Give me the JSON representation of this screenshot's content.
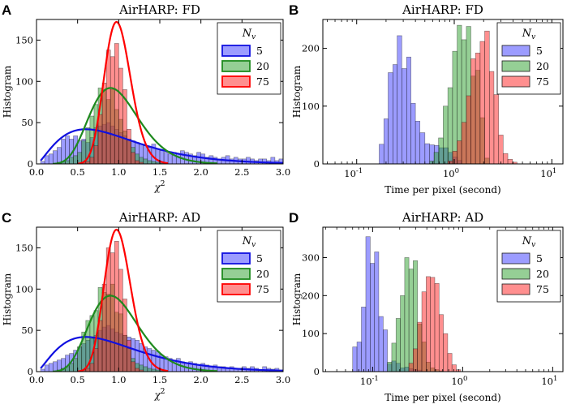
{
  "colors": {
    "blue": "#3a3aff",
    "green": "#2ca02c",
    "red": "#ff2020",
    "blue_line": "#1010e0",
    "green_line": "#1e8a1e",
    "red_line": "#ff0000"
  },
  "chart_data": [
    {
      "id": "A",
      "letter": "A",
      "type": "histogram",
      "title": "AirHARP: FD",
      "xlabel": "χ²",
      "xlabel_base": "χ",
      "xlabel_sup": "2",
      "ylabel": "Histogram",
      "xscale": "linear",
      "xlim": [
        0,
        3
      ],
      "ylim": [
        0,
        175
      ],
      "xticks": [
        0,
        0.5,
        1,
        1.5,
        2,
        2.5,
        3
      ],
      "xtick_labels": [
        "0.0",
        "0.5",
        "1.0",
        "1.5",
        "2.0",
        "2.5",
        "3.0"
      ],
      "yticks": [
        0,
        50,
        100,
        150
      ],
      "ytick_labels": [
        "0",
        "50",
        "100",
        "150"
      ],
      "legend": {
        "title": "N",
        "title_sub": "v",
        "entries": [
          "5",
          "20",
          "75"
        ],
        "placement": "top-right"
      },
      "bin_width": 0.05,
      "series": [
        {
          "name": "5",
          "color_key": "blue",
          "x0": 0.05,
          "values": [
            3,
            10,
            12,
            16,
            20,
            30,
            34,
            30,
            34,
            28,
            30,
            26,
            32,
            44,
            46,
            48,
            50,
            46,
            42,
            38,
            34,
            30,
            28,
            26,
            24,
            22,
            20,
            24,
            18,
            16,
            14,
            12,
            14,
            12,
            16,
            14,
            12,
            10,
            14,
            12,
            8,
            10,
            8,
            6,
            8,
            10,
            6,
            8,
            6,
            6,
            8,
            6,
            4,
            6,
            6,
            4,
            8,
            4,
            6
          ]
        },
        {
          "name": "20",
          "color_key": "green",
          "x0": 0.25,
          "values": [
            2,
            3,
            4,
            8,
            10,
            14,
            28,
            44,
            58,
            72,
            92,
            90,
            78,
            90,
            66,
            54,
            40,
            30,
            20,
            12,
            8,
            6,
            4,
            3,
            2,
            1
          ]
        },
        {
          "name": "75",
          "color_key": "red",
          "x0": 0.55,
          "values": [
            2,
            3,
            8,
            22,
            60,
            98,
            138,
            130,
            146,
            116,
            90,
            42,
            14,
            4,
            2
          ]
        }
      ],
      "fits": [
        {
          "name": "5",
          "color_key": "blue_line",
          "kind": "chi2",
          "dof": 5,
          "scale": 42,
          "xmin": 0.05,
          "xmax": 3.0
        },
        {
          "name": "20",
          "color_key": "green_line",
          "kind": "chi2",
          "dof": 20,
          "scale": 92,
          "xmin": 0.2,
          "xmax": 2.2
        },
        {
          "name": "75",
          "color_key": "red_line",
          "kind": "chi2",
          "dof": 75,
          "scale": 172,
          "xmin": 0.5,
          "xmax": 1.6
        }
      ]
    },
    {
      "id": "B",
      "letter": "B",
      "type": "histogram",
      "title": "AirHARP: FD",
      "xlabel": "Time per pixel (second)",
      "ylabel": "Histogram",
      "xscale": "log",
      "xlim": [
        0.045,
        13
      ],
      "ylim": [
        0,
        250
      ],
      "xticks": [
        0.1,
        1,
        10
      ],
      "xtick_base": "10",
      "xtick_exps": [
        "-1",
        "0",
        "1"
      ],
      "yticks": [
        0,
        100,
        200
      ],
      "ytick_labels": [
        "0",
        "100",
        "200"
      ],
      "legend": {
        "title": "N",
        "title_sub": "v",
        "entries": [
          "5",
          "20",
          "75"
        ],
        "placement": "top-right"
      },
      "series": [
        {
          "name": "5",
          "color_key": "blue",
          "edges": [
            0.17,
            0.19,
            0.21,
            0.235,
            0.26,
            0.29,
            0.325,
            0.36,
            0.4,
            0.445,
            0.5,
            0.56,
            0.625,
            0.7,
            0.78,
            0.87,
            0.97,
            1.08,
            1.2
          ],
          "values": [
            34,
            78,
            158,
            172,
            222,
            165,
            185,
            105,
            74,
            54,
            35,
            33,
            32,
            28,
            28,
            20,
            12,
            6
          ]
        },
        {
          "name": "20",
          "color_key": "green",
          "edges": [
            0.56,
            0.62,
            0.69,
            0.77,
            0.86,
            0.96,
            1.07,
            1.19,
            1.33,
            1.48,
            1.65,
            1.84,
            2.05,
            2.29
          ],
          "values": [
            5,
            20,
            45,
            100,
            132,
            195,
            240,
            215,
            238,
            152,
            162,
            80,
            10
          ]
        },
        {
          "name": "75",
          "color_key": "red",
          "edges": [
            0.86,
            0.96,
            1.07,
            1.19,
            1.33,
            1.48,
            1.65,
            1.84,
            2.05,
            2.29,
            2.55,
            2.85,
            3.17,
            3.54,
            3.95,
            4.4
          ],
          "values": [
            5,
            22,
            40,
            72,
            118,
            182,
            192,
            212,
            230,
            160,
            120,
            50,
            18,
            8,
            3
          ]
        }
      ]
    },
    {
      "id": "C",
      "letter": "C",
      "type": "histogram",
      "title": "AirHARP: AD",
      "xlabel": "χ²",
      "xlabel_base": "χ",
      "xlabel_sup": "2",
      "ylabel": "Histogram",
      "xscale": "linear",
      "xlim": [
        0,
        3
      ],
      "ylim": [
        0,
        175
      ],
      "xticks": [
        0,
        0.5,
        1,
        1.5,
        2,
        2.5,
        3
      ],
      "xtick_labels": [
        "0.0",
        "0.5",
        "1.0",
        "1.5",
        "2.0",
        "2.5",
        "3.0"
      ],
      "yticks": [
        0,
        50,
        100,
        150
      ],
      "ytick_labels": [
        "0",
        "50",
        "100",
        "150"
      ],
      "legend": {
        "title": "N",
        "title_sub": "v",
        "entries": [
          "5",
          "20",
          "75"
        ],
        "placement": "top-right"
      },
      "bin_width": 0.05,
      "series": [
        {
          "name": "5",
          "color_key": "blue",
          "x0": 0.05,
          "values": [
            3,
            8,
            10,
            12,
            14,
            16,
            20,
            22,
            26,
            30,
            34,
            38,
            40,
            44,
            50,
            54,
            56,
            52,
            48,
            46,
            44,
            42,
            40,
            38,
            34,
            30,
            28,
            26,
            24,
            20,
            18,
            16,
            14,
            16,
            12,
            10,
            12,
            10,
            8,
            10,
            8,
            6,
            8,
            6,
            6,
            4,
            6,
            4,
            4,
            6,
            4,
            6,
            4,
            2,
            6,
            4,
            3,
            4,
            2
          ]
        },
        {
          "name": "20",
          "color_key": "green",
          "x0": 0.25,
          "values": [
            2,
            4,
            6,
            10,
            16,
            30,
            48,
            62,
            68,
            74,
            102,
            96,
            94,
            106,
            72,
            70,
            44,
            28,
            16,
            10,
            8,
            6,
            4,
            3,
            2,
            1
          ]
        },
        {
          "name": "75",
          "color_key": "red",
          "x0": 0.55,
          "values": [
            2,
            4,
            10,
            28,
            62,
            106,
            150,
            144,
            158,
            124,
            88,
            38,
            12,
            4,
            2
          ]
        }
      ],
      "fits": [
        {
          "name": "5",
          "color_key": "blue_line",
          "kind": "chi2",
          "dof": 5,
          "scale": 42,
          "xmin": 0.05,
          "xmax": 3.0
        },
        {
          "name": "20",
          "color_key": "green_line",
          "kind": "chi2",
          "dof": 20,
          "scale": 92,
          "xmin": 0.2,
          "xmax": 2.2
        },
        {
          "name": "75",
          "color_key": "red_line",
          "kind": "chi2",
          "dof": 75,
          "scale": 172,
          "xmin": 0.5,
          "xmax": 1.6
        }
      ]
    },
    {
      "id": "D",
      "letter": "D",
      "type": "histogram",
      "title": "AirHARP: AD",
      "xlabel": "Time per pixel (second)",
      "ylabel": "Histogram",
      "xscale": "log",
      "xlim": [
        0.028,
        13
      ],
      "ylim": [
        0,
        380
      ],
      "xticks": [
        0.1,
        1,
        10
      ],
      "xtick_base": "10",
      "xtick_exps": [
        "-1",
        "0",
        "1"
      ],
      "yticks": [
        0,
        100,
        200,
        300
      ],
      "ytick_labels": [
        "0",
        "100",
        "200",
        "300"
      ],
      "legend": {
        "title": "N",
        "title_sub": "v",
        "entries": [
          "5",
          "20",
          "75"
        ],
        "placement": "top-right"
      },
      "series": [
        {
          "name": "5",
          "color_key": "blue",
          "edges": [
            0.06,
            0.067,
            0.075,
            0.084,
            0.094,
            0.105,
            0.117,
            0.131,
            0.146,
            0.163,
            0.182,
            0.203,
            0.227,
            0.253,
            0.282,
            0.315,
            0.352
          ],
          "values": [
            65,
            78,
            170,
            355,
            285,
            315,
            145,
            110,
            20,
            28,
            22,
            10,
            12,
            8,
            6,
            4
          ]
        },
        {
          "name": "20",
          "color_key": "green",
          "edges": [
            0.146,
            0.163,
            0.182,
            0.203,
            0.227,
            0.253,
            0.282,
            0.315,
            0.352,
            0.393,
            0.439,
            0.49,
            0.547,
            0.611
          ],
          "values": [
            25,
            75,
            140,
            200,
            300,
            270,
            292,
            125,
            78,
            25,
            10,
            5,
            2
          ]
        },
        {
          "name": "75",
          "color_key": "red",
          "edges": [
            0.253,
            0.282,
            0.315,
            0.352,
            0.393,
            0.439,
            0.49,
            0.547,
            0.611,
            0.682,
            0.761,
            0.85,
            0.95
          ],
          "values": [
            22,
            60,
            130,
            210,
            250,
            248,
            232,
            150,
            100,
            48,
            18,
            5
          ]
        }
      ]
    }
  ]
}
